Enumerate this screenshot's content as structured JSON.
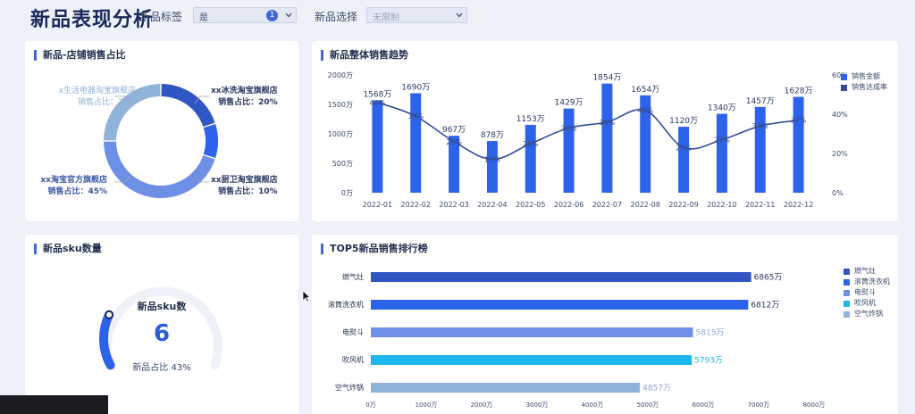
{
  "header": {
    "title": "新品表现分析",
    "filter1_label": "新品标签",
    "filter1_value": "是",
    "filter1_badge": "1",
    "filter2_label": "新品选择",
    "filter2_placeholder": "无限制"
  },
  "donut": {
    "title": "新品-店铺销售占比",
    "labels": [
      {
        "line1": "x生活电器淘宝旗舰店",
        "line2": "销售占比：25%"
      },
      {
        "line1": "xx冰洗淘宝旗舰店",
        "line2": "销售占比：20%"
      },
      {
        "line1": "xx淘宝官方旗舰店",
        "line2": "销售占比：45%"
      },
      {
        "line1": "xx厨卫淘宝旗舰店",
        "line2": "销售占比：10%"
      }
    ],
    "colors": {
      "s1": "#8fb3d9",
      "s2": "#3156c4",
      "s3": "#6e8fe6",
      "s4": "#2c63ea"
    }
  },
  "trend": {
    "title": "新品整体销售趋势",
    "legend": [
      "销售金额",
      "销售达成率"
    ],
    "colors": {
      "bar": "#2c63ea",
      "line": "#344e9e"
    },
    "left_ticks": [
      "2000万",
      "1500万",
      "1000万",
      "500万",
      "0万"
    ],
    "right_ticks": [
      "60%",
      "40%",
      "20%",
      "0%"
    ]
  },
  "sku": {
    "title": "新品sku数量",
    "gauge_title": "新品sku数",
    "value": "6",
    "ratio_text": "新品占比 43%"
  },
  "top5": {
    "title": "TOP5新品销售排行榜",
    "x_ticks": [
      "0万",
      "1000万",
      "2000万",
      "3000万",
      "4000万",
      "5000万",
      "6000万",
      "7000万",
      "8000万"
    ]
  },
  "chart_data": [
    {
      "type": "bar",
      "title": "新品整体销售趋势",
      "categories": [
        "2022-01",
        "2022-02",
        "2022-03",
        "2022-04",
        "2022-05",
        "2022-06",
        "2022-07",
        "2022-08",
        "2022-09",
        "2022-10",
        "2022-11",
        "2022-12"
      ],
      "series": [
        {
          "name": "销售金额",
          "values": [
            1568,
            1690,
            967,
            878,
            1153,
            1429,
            1854,
            1654,
            1120,
            1340,
            1457,
            1628
          ],
          "labels": [
            "1568万",
            "1690万",
            "967万",
            "878万",
            "1153万",
            "1429万",
            "1854万",
            "1654万",
            "1120万",
            "1340万",
            "1457万",
            "1628万"
          ]
        },
        {
          "name": "销售达成率",
          "values": [
            46,
            39,
            26,
            17,
            25,
            33,
            36,
            42,
            23,
            27,
            34,
            37
          ],
          "labels": [
            "46%",
            "39%",
            "26%",
            "17%",
            "25%",
            "33%",
            "36%",
            "42%",
            "23%",
            "27%",
            "34%",
            "37%"
          ]
        }
      ],
      "ylim": [
        0,
        2000
      ],
      "y2lim": [
        0,
        60
      ],
      "legend": "right"
    },
    {
      "type": "bar",
      "title": "TOP5新品销售排行榜",
      "categories": [
        "燃气灶",
        "滚筒洗衣机",
        "电熨斗",
        "吹风机",
        "空气炸锅"
      ],
      "values": [
        6865,
        6812,
        5815,
        5793,
        4857
      ],
      "labels": [
        "6865万",
        "6812万",
        "5815万",
        "5793万",
        "4857万"
      ],
      "colors": [
        "#3156c4",
        "#2c63ea",
        "#6e8fe6",
        "#1eb6ef",
        "#8fb3d9"
      ],
      "xlim": [
        0,
        8000
      ],
      "legend": "right"
    },
    {
      "type": "pie",
      "title": "新品-店铺销售占比",
      "categories": [
        "x生活电器淘宝旗舰店",
        "xx冰洗淘宝旗舰店",
        "xx厨卫淘宝旗舰店",
        "xx淘宝官方旗舰店"
      ],
      "values": [
        25,
        20,
        10,
        45
      ]
    }
  ]
}
